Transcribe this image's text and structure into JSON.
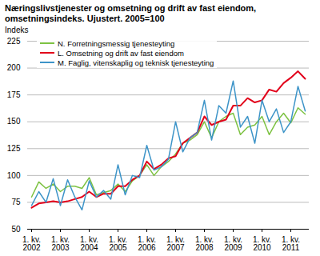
{
  "chart_data": {
    "type": "line",
    "title": "Næringslivstjenester og omsetning og drift av fast eiendom, omsetningsindeks. Ujustert. 2005=100",
    "subtitle": "Indeks",
    "categories": [
      "1. kv. 2002",
      null,
      null,
      null,
      "1. kv. 2003",
      null,
      null,
      null,
      "1. kv. 2004",
      null,
      null,
      null,
      "1. kv. 2005",
      null,
      null,
      null,
      "1. kv. 2006",
      null,
      null,
      null,
      "1. kv. 2007",
      null,
      null,
      null,
      "1. kv. 2008",
      null,
      null,
      null,
      "1. kv. 2009",
      null,
      null,
      null,
      "1. kv. 2010",
      null,
      null,
      null,
      "1. kv. 2011",
      null,
      null
    ],
    "series": [
      {
        "name": "N. Forretningsmessig tjenesteyting",
        "color": "#7dc242",
        "values": [
          80,
          94,
          88,
          92,
          85,
          90,
          90,
          88,
          98,
          82,
          84,
          86,
          92,
          85,
          95,
          100,
          110,
          100,
          108,
          113,
          120,
          130,
          133,
          138,
          150,
          135,
          150,
          155,
          158,
          138,
          145,
          147,
          155,
          138,
          150,
          158,
          149,
          163,
          157
        ]
      },
      {
        "name": "L. Omsetning og drift av fast eiendom",
        "color": "#e2001a",
        "values": [
          70,
          74,
          75,
          76,
          75,
          76,
          78,
          80,
          85,
          80,
          83,
          83,
          90,
          90,
          96,
          100,
          113,
          106,
          110,
          116,
          118,
          130,
          135,
          140,
          155,
          147,
          150,
          152,
          165,
          165,
          172,
          168,
          170,
          180,
          178,
          186,
          191,
          197,
          190
        ]
      },
      {
        "name": "M. Faglig, vitenskaplig og teknisk tjenesteyting",
        "color": "#3d94c8",
        "values": [
          72,
          85,
          75,
          97,
          72,
          96,
          80,
          68,
          95,
          80,
          86,
          78,
          110,
          82,
          100,
          98,
          128,
          105,
          108,
          115,
          150,
          122,
          135,
          140,
          170,
          133,
          165,
          158,
          188,
          145,
          155,
          130,
          170,
          150,
          162,
          140,
          150,
          183,
          160
        ]
      }
    ],
    "ylim": [
      50,
      225
    ],
    "yticks": [
      50,
      75,
      100,
      125,
      150,
      175,
      200,
      225
    ],
    "grid": true,
    "legend": "top-left"
  }
}
